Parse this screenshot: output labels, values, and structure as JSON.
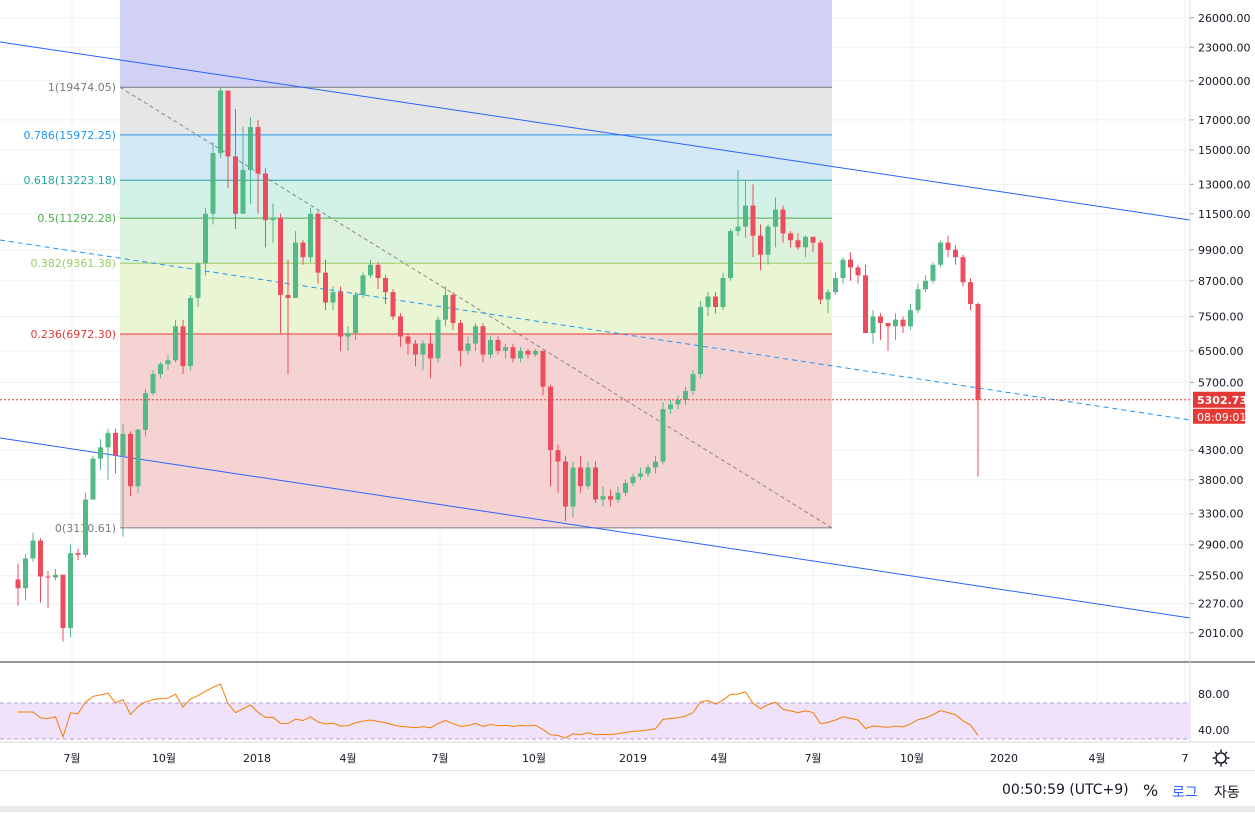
{
  "chart_data": {
    "type": "candlestick",
    "y_scale": "log",
    "ylim": [
      1780,
      28000
    ],
    "price_ticks": [
      "26000.00",
      "23000.00",
      "20000.00",
      "17000.00",
      "15000.00",
      "13000.00",
      "11500.00",
      "9900.00",
      "8700.00",
      "7500.00",
      "6500.00",
      "5700.00",
      "4300.00",
      "3800.00",
      "3300.00",
      "2900.00",
      "2550.00",
      "2270.00",
      "2010.00"
    ],
    "time_labels": [
      "7월",
      "10월",
      "2018",
      "4월",
      "7월",
      "10월",
      "2019",
      "4월",
      "7월",
      "10월",
      "2020",
      "4월",
      "7"
    ],
    "candles": [
      [
        2510,
        2420,
        2680,
        2250
      ],
      [
        2420,
        2740,
        2790,
        2300
      ],
      [
        2740,
        2950,
        3050,
        2700
      ],
      [
        2950,
        2540,
        2980,
        2280
      ],
      [
        2540,
        2530,
        2600,
        2230
      ],
      [
        2530,
        2560,
        2620,
        2500
      ],
      [
        2560,
        2050,
        2560,
        1940
      ],
      [
        2050,
        2800,
        2900,
        1970
      ],
      [
        2800,
        2780,
        2850,
        2720
      ],
      [
        2780,
        3500,
        3600,
        2750
      ],
      [
        3500,
        4150,
        4200,
        3500
      ],
      [
        4150,
        4350,
        4500,
        3960
      ],
      [
        4350,
        4620,
        4700,
        3800
      ],
      [
        4620,
        4200,
        4700,
        3900
      ],
      [
        4200,
        4600,
        4800,
        3000
      ],
      [
        4600,
        3700,
        4650,
        3550
      ],
      [
        3700,
        4680,
        4700,
        3600
      ],
      [
        4680,
        5450,
        5550,
        4550
      ],
      [
        5450,
        5900,
        6000,
        5400
      ],
      [
        5900,
        6150,
        6200,
        5800
      ],
      [
        6150,
        6250,
        6400,
        6000
      ],
      [
        6250,
        7200,
        7400,
        6200
      ],
      [
        7200,
        6100,
        7400,
        5900
      ],
      [
        6100,
        8100,
        8200,
        6000
      ],
      [
        8100,
        9350,
        9400,
        7800
      ],
      [
        9350,
        11500,
        11800,
        8900
      ],
      [
        11500,
        14800,
        15500,
        11000
      ],
      [
        14800,
        19200,
        19474,
        14500
      ],
      [
        19200,
        14600,
        19000,
        12800
      ],
      [
        14600,
        11500,
        17800,
        10800
      ],
      [
        11500,
        13800,
        16500,
        12500
      ],
      [
        13800,
        16500,
        17200,
        12000
      ],
      [
        16500,
        13600,
        17000,
        11500
      ],
      [
        13600,
        11200,
        13900,
        10000
      ],
      [
        11200,
        11300,
        12000,
        10200
      ],
      [
        11300,
        8200,
        11500,
        7000
      ],
      [
        8200,
        8100,
        9500,
        5900
      ],
      [
        8100,
        10200,
        10700,
        8100
      ],
      [
        10200,
        9600,
        10300,
        9300
      ],
      [
        9600,
        11500,
        11800,
        9400
      ],
      [
        11500,
        9000,
        11600,
        8600
      ],
      [
        9000,
        7950,
        9500,
        7700
      ],
      [
        7950,
        8300,
        8500,
        7700
      ],
      [
        8300,
        6900,
        8500,
        6500
      ],
      [
        6900,
        7000,
        7200,
        6500
      ],
      [
        7000,
        8200,
        8300,
        6800
      ],
      [
        8200,
        8900,
        9000,
        8100
      ],
      [
        8900,
        9300,
        9500,
        8800
      ],
      [
        9300,
        8800,
        9400,
        8400
      ],
      [
        8800,
        8300,
        8900,
        7900
      ],
      [
        8300,
        7500,
        8400,
        7400
      ],
      [
        7500,
        6900,
        7600,
        6600
      ],
      [
        6900,
        6700,
        7000,
        6400
      ],
      [
        6700,
        6400,
        6800,
        6100
      ],
      [
        6400,
        6700,
        6800,
        6000
      ],
      [
        6700,
        6300,
        7000,
        5800
      ],
      [
        6300,
        7400,
        7500,
        6200
      ],
      [
        7400,
        8200,
        8500,
        7200
      ],
      [
        8200,
        7300,
        8300,
        7100
      ],
      [
        7300,
        6500,
        7400,
        6100
      ],
      [
        6500,
        6700,
        6900,
        6400
      ],
      [
        6700,
        7200,
        7300,
        6500
      ],
      [
        7200,
        6400,
        7300,
        6200
      ],
      [
        6400,
        6800,
        6900,
        6300
      ],
      [
        6800,
        6500,
        6900,
        6400
      ],
      [
        6500,
        6600,
        6700,
        6300
      ],
      [
        6600,
        6300,
        6700,
        6200
      ],
      [
        6300,
        6500,
        6600,
        6200
      ],
      [
        6500,
        6400,
        6550,
        6300
      ],
      [
        6400,
        6500,
        6550,
        6350
      ],
      [
        6500,
        5600,
        6500,
        5400
      ],
      [
        5600,
        4300,
        5650,
        3700
      ],
      [
        4300,
        4100,
        4400,
        3600
      ],
      [
        4100,
        3400,
        4200,
        3200
      ],
      [
        3400,
        4000,
        4100,
        3250
      ],
      [
        4000,
        3700,
        4200,
        3600
      ],
      [
        3700,
        4000,
        4100,
        3650
      ],
      [
        4000,
        3500,
        4100,
        3450
      ],
      [
        3500,
        3550,
        3700,
        3400
      ],
      [
        3550,
        3500,
        3650,
        3400
      ],
      [
        3500,
        3600,
        3700,
        3450
      ],
      [
        3600,
        3750,
        3800,
        3550
      ],
      [
        3750,
        3850,
        3900,
        3700
      ],
      [
        3850,
        3900,
        4000,
        3800
      ],
      [
        3900,
        4000,
        4050,
        3850
      ],
      [
        4000,
        4100,
        4200,
        3900
      ],
      [
        4100,
        5100,
        5250,
        4050
      ],
      [
        5100,
        5200,
        5300,
        5000
      ],
      [
        5200,
        5300,
        5400,
        5100
      ],
      [
        5300,
        5500,
        5600,
        5200
      ],
      [
        5500,
        5900,
        6000,
        5400
      ],
      [
        5900,
        7800,
        8000,
        5800
      ],
      [
        7800,
        8150,
        8300,
        7500
      ],
      [
        8150,
        7800,
        8300,
        7600
      ],
      [
        7800,
        8800,
        9000,
        7700
      ],
      [
        8800,
        10700,
        10800,
        8700
      ],
      [
        10700,
        10900,
        13800,
        10500
      ],
      [
        10900,
        11900,
        13200,
        10400
      ],
      [
        11900,
        10500,
        13000,
        9600
      ],
      [
        10500,
        9700,
        11000,
        9100
      ],
      [
        9700,
        10900,
        11000,
        9300
      ],
      [
        10900,
        11700,
        12300,
        10000
      ],
      [
        11700,
        10600,
        11900,
        10200
      ],
      [
        10600,
        10300,
        10700,
        10000
      ],
      [
        10300,
        10000,
        10600,
        9900
      ],
      [
        10000,
        10450,
        10500,
        9600
      ],
      [
        10450,
        10200,
        10400,
        9800
      ],
      [
        10200,
        8050,
        10300,
        7900
      ],
      [
        8050,
        8300,
        8400,
        7600
      ],
      [
        8300,
        8800,
        9000,
        8200
      ],
      [
        8800,
        9500,
        9600,
        8600
      ],
      [
        9500,
        9200,
        9800,
        8700
      ],
      [
        9200,
        8900,
        9300,
        8600
      ],
      [
        8900,
        7000,
        9300,
        7000
      ],
      [
        7000,
        7500,
        7700,
        6700
      ],
      [
        7500,
        7300,
        7600,
        6800
      ],
      [
        7300,
        7200,
        7300,
        6500
      ],
      [
        7200,
        7400,
        7600,
        6800
      ],
      [
        7400,
        7200,
        7500,
        7000
      ],
      [
        7200,
        7700,
        7900,
        7100
      ],
      [
        7700,
        8400,
        8600,
        7600
      ],
      [
        8400,
        8700,
        8900,
        8300
      ],
      [
        8700,
        9300,
        9400,
        8600
      ],
      [
        9300,
        10200,
        10300,
        9200
      ],
      [
        10200,
        9900,
        10500,
        9600
      ],
      [
        9900,
        9600,
        10100,
        9300
      ],
      [
        9600,
        8650,
        9700,
        8500
      ],
      [
        8650,
        7900,
        8800,
        7700
      ],
      [
        7900,
        5302,
        7950,
        3850
      ]
    ],
    "rsi_ticks": [
      "80.00",
      "40.00"
    ],
    "fib_levels": [
      {
        "label": "1(19474.05)",
        "price": 19474.05,
        "color": "#787b86"
      },
      {
        "label": "0.786(15972.25)",
        "price": 15972.25,
        "color": "#2196f3"
      },
      {
        "label": "0.618(13223.18)",
        "price": 13223.18,
        "color": "#26a69a"
      },
      {
        "label": "0.5(11292.28)",
        "price": 11292.28,
        "color": "#4caf50"
      },
      {
        "label": "0.382(9361.38)",
        "price": 9361.38,
        "color": "#9ccc65"
      },
      {
        "label": "0.236(6972.30)",
        "price": 6972.3,
        "color": "#e53935"
      },
      {
        "label": "0(3110.61)",
        "price": 3110.61,
        "color": "#787b86"
      }
    ],
    "last_price": "5302.73",
    "countdown": "08:09:01",
    "colors": {
      "up": "#53b987",
      "down": "#eb4d5c",
      "trendline": "#2962ff",
      "rsi": "#f57c00",
      "last": "#e53935"
    }
  },
  "footer": {
    "time": "00:50:59 (UTC+9)",
    "percent": "%",
    "log": "로그",
    "auto": "자동"
  }
}
